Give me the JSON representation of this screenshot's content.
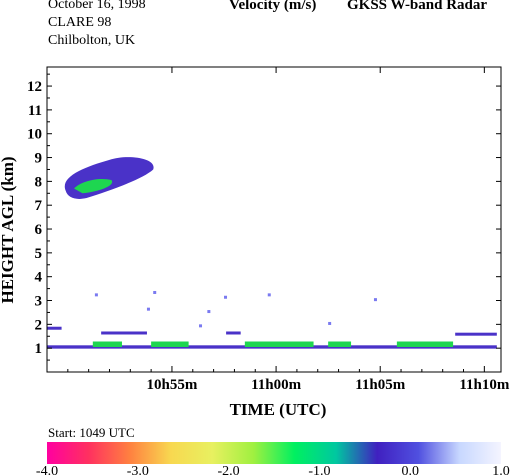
{
  "header": {
    "date": "October  16, 1998",
    "campaign": "CLARE 98",
    "location": "Chilbolton, UK",
    "variable": "Velocity (m/s)",
    "instrument": "GKSS  W-band Radar"
  },
  "start_label": "Start: 1049 UTC",
  "colors": {
    "colorbar_stops": [
      "#ff00a0",
      "#ff3060",
      "#ff8040",
      "#f8d850",
      "#e8f060",
      "#a0f040",
      "#00f060",
      "#00c8a0",
      "#4020c0",
      "#5050e0",
      "#c8d8ff",
      "#f4f4ff"
    ],
    "echo_main": "#4a32c8",
    "echo_green": "#1ed650",
    "echo_light": "#7a7af0"
  },
  "chart_data": {
    "type": "heatmap",
    "xlabel": "TIME (UTC)",
    "ylabel": "HEIGHT AGL (km)",
    "x_ticks": [
      {
        "label": "10h55m",
        "t": 6.0
      },
      {
        "label": "11h00m",
        "t": 11.0
      },
      {
        "label": "11h05m",
        "t": 16.0
      },
      {
        "label": "11h10m",
        "t": 21.0
      }
    ],
    "x_range_minutes_after_start": [
      0,
      21.8
    ],
    "y_ticks": [
      1,
      2,
      3,
      4,
      5,
      6,
      7,
      8,
      9,
      10,
      11,
      12
    ],
    "ylim": [
      0,
      12.8
    ],
    "grid": false,
    "colorbar": {
      "label_values": [
        "-4.0",
        "-3.0",
        "-2.0",
        "-1.0",
        "0.0",
        "1.0"
      ],
      "range": [
        -4.0,
        1.0
      ]
    }
  }
}
